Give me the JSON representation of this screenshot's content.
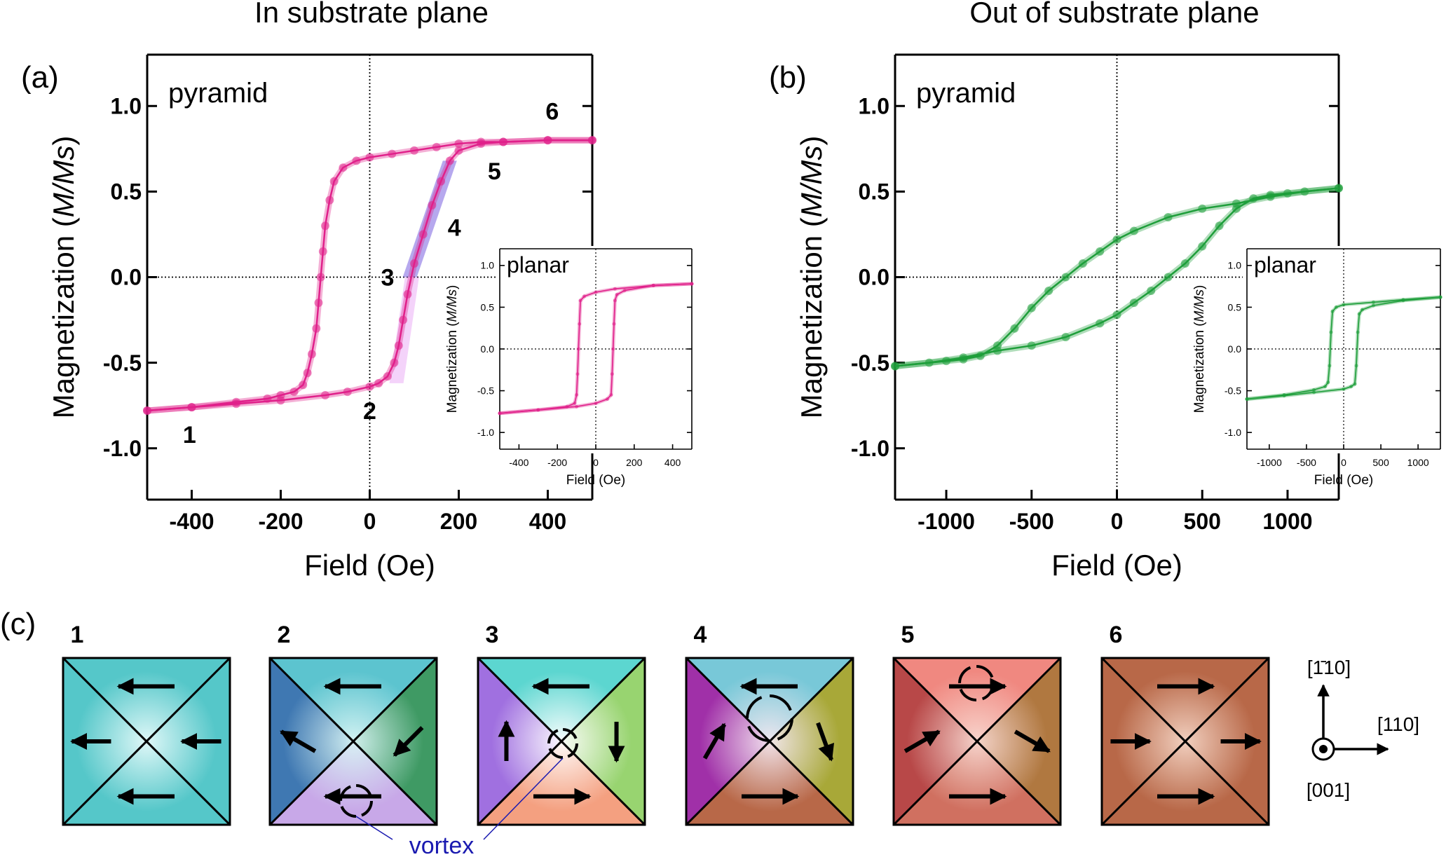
{
  "chart_data": [
    {
      "id": "a",
      "type": "line",
      "panel_label": "(a)",
      "title": "In substrate plane",
      "annotation": "pyramid",
      "xlabel": "Field (Oe)",
      "ylabel": "Magnetization (M/Ms)",
      "ylabel_plain": "Magnetization (",
      "ylabel_italic": "M/Ms",
      "ylabel_close": ")",
      "xlim": [
        -500,
        500
      ],
      "ylim": [
        -1.3,
        1.3
      ],
      "xticks": [
        -400,
        -200,
        0,
        200,
        400
      ],
      "xtick_labels": [
        "-400",
        "-200",
        "0",
        "200",
        "400"
      ],
      "yticks": [
        -1.0,
        -0.5,
        0.0,
        0.5,
        1.0
      ],
      "ytick_labels": [
        "-1.0",
        "-0.5",
        "0.0",
        "0.5",
        "1.0"
      ],
      "series": [
        {
          "name": "descending branch",
          "color": "#e0208a",
          "x": [
            500,
            400,
            300,
            250,
            200,
            150,
            100,
            50,
            0,
            -30,
            -60,
            -80,
            -90,
            -100,
            -105,
            -110,
            -115,
            -120,
            -130,
            -140,
            -150,
            -170,
            -200,
            -230,
            -300,
            -400,
            -500
          ],
          "y": [
            0.8,
            0.8,
            0.79,
            0.79,
            0.78,
            0.76,
            0.74,
            0.72,
            0.7,
            0.68,
            0.64,
            0.56,
            0.45,
            0.3,
            0.15,
            0.0,
            -0.15,
            -0.3,
            -0.45,
            -0.56,
            -0.63,
            -0.67,
            -0.69,
            -0.71,
            -0.73,
            -0.76,
            -0.78
          ]
        },
        {
          "name": "ascending branch",
          "color": "#e0208a",
          "x": [
            -500,
            -400,
            -300,
            -200,
            -100,
            -50,
            0,
            20,
            40,
            55,
            65,
            75,
            85,
            100,
            120,
            140,
            160,
            180,
            200,
            250,
            300,
            400,
            500
          ],
          "y": [
            -0.78,
            -0.76,
            -0.74,
            -0.72,
            -0.69,
            -0.67,
            -0.64,
            -0.62,
            -0.58,
            -0.5,
            -0.4,
            -0.25,
            -0.1,
            0.08,
            0.25,
            0.42,
            0.56,
            0.68,
            0.74,
            0.78,
            0.79,
            0.8,
            0.8
          ]
        }
      ],
      "highlight": {
        "color": "#7a60e0",
        "x": [
          90,
          180
        ],
        "y": [
          0.0,
          0.68
        ]
      },
      "highlight2": {
        "color": "#e080f0",
        "x": [
          60,
          95
        ],
        "y": [
          -0.62,
          0.0
        ]
      },
      "point_labels": [
        {
          "text": "1",
          "x": -405,
          "y": -0.92
        },
        {
          "text": "2",
          "x": 0,
          "y": -0.78
        },
        {
          "text": "3",
          "x": 40,
          "y": 0.0
        },
        {
          "text": "4",
          "x": 190,
          "y": 0.29
        },
        {
          "text": "5",
          "x": 280,
          "y": 0.62
        },
        {
          "text": "6",
          "x": 410,
          "y": 0.97
        }
      ],
      "inset": {
        "annotation": "planar",
        "xlabel": "Field (Oe)",
        "ylabel_plain": "Magnetization (",
        "ylabel_italic": "M/Ms",
        "ylabel_close": ")",
        "xlim": [
          -500,
          500
        ],
        "ylim": [
          -1.2,
          1.2
        ],
        "xticks": [
          -400,
          -200,
          0,
          200,
          400
        ],
        "xtick_labels": [
          "-400",
          "-200",
          "0",
          "200",
          "400"
        ],
        "yticks": [
          -1.0,
          -0.5,
          0.0,
          0.5,
          1.0
        ],
        "ytick_labels": [
          "-1.0",
          "-0.5",
          "0.0",
          "0.5",
          "1.0"
        ],
        "series": [
          {
            "name": "descending",
            "color": "#e0208a",
            "x": [
              500,
              300,
              100,
              0,
              -60,
              -80,
              -85,
              -90,
              -95,
              -100,
              -110,
              -150,
              -300,
              -500
            ],
            "y": [
              0.78,
              0.76,
              0.72,
              0.68,
              0.63,
              0.58,
              0.3,
              0.0,
              -0.3,
              -0.55,
              -0.65,
              -0.69,
              -0.73,
              -0.77
            ]
          },
          {
            "name": "ascending",
            "color": "#e0208a",
            "x": [
              -500,
              -300,
              -100,
              0,
              60,
              80,
              85,
              90,
              95,
              100,
              110,
              150,
              300,
              500
            ],
            "y": [
              -0.77,
              -0.73,
              -0.69,
              -0.65,
              -0.6,
              -0.55,
              -0.3,
              0.0,
              0.3,
              0.58,
              0.65,
              0.7,
              0.76,
              0.78
            ]
          }
        ]
      }
    },
    {
      "id": "b",
      "type": "line",
      "panel_label": "(b)",
      "title": "Out of substrate plane",
      "annotation": "pyramid",
      "xlabel": "Field (Oe)",
      "ylabel": "Magnetization (M/Ms)",
      "ylabel_plain": "Magnetization (",
      "ylabel_italic": "M/Ms",
      "ylabel_close": ")",
      "xlim": [
        -1300,
        1300
      ],
      "ylim": [
        -1.3,
        1.3
      ],
      "xticks": [
        -1000,
        -500,
        0,
        500,
        1000
      ],
      "xtick_labels": [
        "-1000",
        "-500",
        "0",
        "500",
        "1000"
      ],
      "yticks": [
        -1.0,
        -0.5,
        0.0,
        0.5,
        1.0
      ],
      "ytick_labels": [
        "-1.0",
        "-0.5",
        "0.0",
        "0.5",
        "1.0"
      ],
      "series": [
        {
          "name": "descending branch",
          "color": "#1e9e3a",
          "x": [
            1300,
            1100,
            900,
            700,
            500,
            300,
            100,
            0,
            -100,
            -200,
            -300,
            -400,
            -500,
            -600,
            -700,
            -800,
            -900,
            -1000,
            -1300
          ],
          "y": [
            0.52,
            0.5,
            0.47,
            0.43,
            0.4,
            0.35,
            0.27,
            0.22,
            0.15,
            0.08,
            0.0,
            -0.08,
            -0.18,
            -0.3,
            -0.4,
            -0.46,
            -0.48,
            -0.49,
            -0.52
          ]
        },
        {
          "name": "ascending branch",
          "color": "#1e9e3a",
          "x": [
            -1300,
            -1100,
            -900,
            -700,
            -500,
            -300,
            -100,
            0,
            100,
            200,
            300,
            400,
            500,
            600,
            700,
            800,
            900,
            1000,
            1300
          ],
          "y": [
            -0.52,
            -0.5,
            -0.47,
            -0.43,
            -0.4,
            -0.35,
            -0.27,
            -0.22,
            -0.15,
            -0.08,
            0.0,
            0.08,
            0.18,
            0.3,
            0.4,
            0.46,
            0.48,
            0.49,
            0.52
          ]
        }
      ],
      "inset": {
        "annotation": "planar",
        "xlabel": "Field (Oe)",
        "ylabel_plain": "Magnetization (",
        "ylabel_italic": "M/Ms",
        "ylabel_close": ")",
        "xlim": [
          -1300,
          1300
        ],
        "ylim": [
          -1.2,
          1.2
        ],
        "xticks": [
          -1000,
          -500,
          0,
          500,
          1000
        ],
        "xtick_labels": [
          "-1000",
          "-500",
          "0",
          "500",
          "1000"
        ],
        "yticks": [
          -1.0,
          -0.5,
          0.0,
          0.5,
          1.0
        ],
        "ytick_labels": [
          "-1.0",
          "-0.5",
          "0.0",
          "0.5",
          "1.0"
        ],
        "series": [
          {
            "name": "descending",
            "color": "#1e9e3a",
            "x": [
              1300,
              800,
              400,
              0,
              -100,
              -150,
              -170,
              -190,
              -210,
              -250,
              -400,
              -800,
              -1300
            ],
            "y": [
              0.62,
              0.59,
              0.56,
              0.53,
              0.5,
              0.45,
              0.2,
              -0.2,
              -0.4,
              -0.45,
              -0.49,
              -0.55,
              -0.6
            ]
          },
          {
            "name": "ascending",
            "color": "#1e9e3a",
            "x": [
              -1300,
              -800,
              -400,
              0,
              100,
              150,
              170,
              190,
              210,
              250,
              400,
              800,
              1300
            ],
            "y": [
              -0.6,
              -0.56,
              -0.52,
              -0.48,
              -0.45,
              -0.42,
              -0.2,
              0.2,
              0.42,
              0.47,
              0.52,
              0.58,
              0.62
            ]
          }
        ]
      }
    }
  ],
  "panel_c": {
    "label": "(c)",
    "squares": [
      {
        "label": "1",
        "colors": {
          "top": "#55c7c9",
          "left": "#55c7c9",
          "right": "#55c7c9",
          "bottom": "#55c7c9",
          "center": "#e6fafa"
        },
        "arrows": [
          {
            "region": "top",
            "angle": 180
          },
          {
            "region": "left",
            "angle": 180
          },
          {
            "region": "right",
            "angle": 180
          },
          {
            "region": "bottom",
            "angle": 180
          }
        ]
      },
      {
        "label": "2",
        "colors": {
          "top": "#5cc4cf",
          "left": "#3f78b2",
          "right": "#3f9a64",
          "bottom": "#c8a8e8",
          "center": "#d8f4f4"
        },
        "arrows": [
          {
            "region": "top",
            "angle": 180
          },
          {
            "region": "left",
            "angle": 150
          },
          {
            "region": "right",
            "angle": 225
          },
          {
            "region": "bottom",
            "angle": 180
          }
        ]
      },
      {
        "label": "3",
        "colors": {
          "top": "#5cd6d0",
          "left": "#a070e0",
          "right": "#98d470",
          "bottom": "#f4a080",
          "center": "#ffffff"
        },
        "arrows": [
          {
            "region": "top",
            "angle": 180
          },
          {
            "region": "left",
            "angle": 90
          },
          {
            "region": "right",
            "angle": 270
          },
          {
            "region": "bottom",
            "angle": 0
          }
        ]
      },
      {
        "label": "4",
        "colors": {
          "top": "#78c8d8",
          "left": "#a030a8",
          "right": "#a8a838",
          "bottom": "#b86848",
          "center": "#f4e8f0"
        },
        "arrows": [
          {
            "region": "top",
            "angle": 180
          },
          {
            "region": "left",
            "angle": 60
          },
          {
            "region": "right",
            "angle": 290
          },
          {
            "region": "bottom",
            "angle": 0
          }
        ]
      },
      {
        "label": "5",
        "colors": {
          "top": "#f08880",
          "left": "#b84848",
          "right": "#b07840",
          "bottom": "#d07060",
          "center": "#f8d8d0"
        },
        "arrows": [
          {
            "region": "top",
            "angle": 0
          },
          {
            "region": "left",
            "angle": 30
          },
          {
            "region": "right",
            "angle": 330
          },
          {
            "region": "bottom",
            "angle": 0
          }
        ]
      },
      {
        "label": "6",
        "colors": {
          "top": "#b86848",
          "left": "#b86848",
          "right": "#b86848",
          "bottom": "#b86848",
          "center": "#f4d4c4"
        },
        "arrows": [
          {
            "region": "top",
            "angle": 0
          },
          {
            "region": "left",
            "angle": 0
          },
          {
            "region": "right",
            "angle": 0
          },
          {
            "region": "bottom",
            "angle": 0
          }
        ]
      }
    ],
    "vortex_label": "vortex",
    "vortex_color": "#1a1ab0",
    "axes_labels": {
      "up": "[1̄10]",
      "right": "[110]",
      "out": "[001]"
    }
  }
}
